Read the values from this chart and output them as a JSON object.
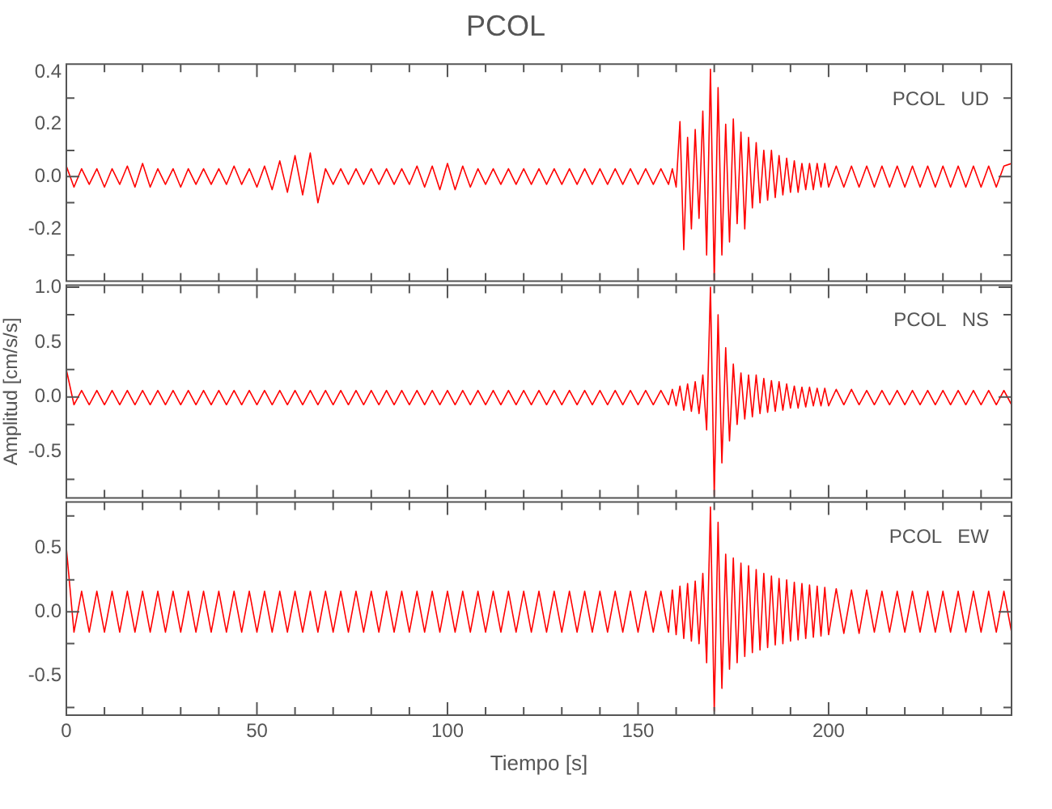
{
  "chart_data": [
    {
      "type": "line",
      "title": "PCOL",
      "annotations": [
        "PCOL   UD"
      ],
      "legend": false,
      "grid": false,
      "tick_labels": "y",
      "xlim": [
        0,
        248
      ],
      "ylim": [
        -0.4,
        0.43
      ],
      "xticks": [
        0,
        {
          "value": 10,
          "label": null
        },
        {
          "value": 20,
          "label": null
        },
        {
          "value": 30,
          "label": null
        },
        {
          "value": 40,
          "label": null
        },
        50,
        {
          "value": 60,
          "label": null
        },
        {
          "value": 70,
          "label": null
        },
        {
          "value": 80,
          "label": null
        },
        {
          "value": 90,
          "label": null
        },
        100,
        {
          "value": 110,
          "label": null
        },
        {
          "value": 120,
          "label": null
        },
        {
          "value": 130,
          "label": null
        },
        {
          "value": 140,
          "label": null
        },
        150,
        {
          "value": 160,
          "label": null
        },
        {
          "value": 170,
          "label": null
        },
        {
          "value": 180,
          "label": null
        },
        {
          "value": 190,
          "label": null
        },
        200,
        {
          "value": 210,
          "label": null
        },
        {
          "value": 220,
          "label": null
        },
        {
          "value": 230,
          "label": null
        },
        {
          "value": 240,
          "label": null
        }
      ],
      "yticks": [
        {
          "value": -0.3,
          "label": null
        },
        -0.2,
        {
          "value": -0.1,
          "label": null
        },
        {
          "value": 0,
          "label": "0.0"
        },
        {
          "value": 0.1,
          "label": null
        },
        0.2,
        {
          "value": 0.3,
          "label": null
        },
        0.4
      ],
      "x": [
        0,
        2,
        4,
        6,
        8,
        10,
        12,
        14,
        16,
        18,
        20,
        22,
        24,
        26,
        28,
        30,
        32,
        34,
        36,
        38,
        40,
        42,
        44,
        46,
        48,
        50,
        52,
        54,
        56,
        58,
        60,
        62,
        64,
        66,
        68,
        70,
        72,
        74,
        76,
        78,
        80,
        82,
        84,
        86,
        88,
        90,
        92,
        94,
        96,
        98,
        100,
        102,
        104,
        106,
        108,
        110,
        112,
        114,
        116,
        118,
        120,
        122,
        124,
        126,
        128,
        130,
        132,
        134,
        136,
        138,
        140,
        142,
        144,
        146,
        148,
        150,
        152,
        154,
        156,
        158,
        159,
        160,
        161,
        162,
        163,
        164,
        165,
        166,
        167,
        168,
        169,
        170,
        171,
        172,
        173,
        174,
        175,
        176,
        177,
        178,
        179,
        180,
        181,
        182,
        183,
        184,
        185,
        186,
        187,
        188,
        189,
        190,
        191,
        192,
        193,
        194,
        195,
        196,
        197,
        198,
        199,
        200,
        202,
        204,
        206,
        208,
        210,
        212,
        214,
        216,
        218,
        220,
        222,
        224,
        226,
        228,
        230,
        232,
        234,
        236,
        238,
        240,
        242,
        244,
        246,
        248
      ],
      "series": [
        {
          "color": "#ff0000",
          "values": [
            0.04,
            -0.04,
            0.03,
            -0.03,
            0.03,
            -0.04,
            0.03,
            -0.03,
            0.04,
            -0.04,
            0.05,
            -0.04,
            0.03,
            -0.03,
            0.03,
            -0.04,
            0.03,
            -0.03,
            0.03,
            -0.03,
            0.03,
            -0.03,
            0.04,
            -0.03,
            0.03,
            -0.04,
            0.04,
            -0.05,
            0.06,
            -0.06,
            0.08,
            -0.07,
            0.09,
            -0.1,
            0.03,
            -0.03,
            0.03,
            -0.03,
            0.03,
            -0.03,
            0.03,
            -0.03,
            0.03,
            -0.03,
            0.03,
            -0.03,
            0.04,
            -0.04,
            0.04,
            -0.05,
            0.05,
            -0.05,
            0.04,
            -0.04,
            0.03,
            -0.03,
            0.03,
            -0.03,
            0.03,
            -0.03,
            0.03,
            -0.03,
            0.03,
            -0.03,
            0.03,
            -0.03,
            0.03,
            -0.03,
            0.03,
            -0.03,
            0.03,
            -0.03,
            0.03,
            -0.03,
            0.03,
            -0.03,
            0.03,
            -0.03,
            0.03,
            -0.03,
            0.03,
            -0.04,
            0.21,
            -0.28,
            0.15,
            -0.2,
            0.18,
            -0.16,
            0.25,
            -0.3,
            0.41,
            -0.4,
            0.34,
            -0.3,
            0.2,
            -0.25,
            0.22,
            -0.18,
            0.17,
            -0.2,
            0.15,
            -0.12,
            0.13,
            -0.1,
            0.1,
            -0.09,
            0.1,
            -0.08,
            0.08,
            -0.07,
            0.07,
            -0.06,
            0.06,
            -0.06,
            0.05,
            -0.05,
            0.05,
            -0.05,
            0.05,
            -0.04,
            0.05,
            -0.04,
            0.04,
            -0.04,
            0.04,
            -0.04,
            0.04,
            -0.04,
            0.04,
            -0.04,
            0.04,
            -0.04,
            0.04,
            -0.04,
            0.04,
            -0.04,
            0.04,
            -0.04,
            0.04,
            -0.04,
            0.04,
            -0.04,
            0.04,
            -0.04,
            0.04,
            0.05
          ]
        }
      ]
    },
    {
      "type": "line",
      "ylabel": "Amplitud [cm/s/s]",
      "annotations": [
        "PCOL   NS"
      ],
      "legend": false,
      "grid": false,
      "tick_labels": "y",
      "xlim": [
        0,
        248
      ],
      "ylim": [
        -0.92,
        1.02
      ],
      "xticks": [
        0,
        {
          "value": 10,
          "label": null
        },
        {
          "value": 20,
          "label": null
        },
        {
          "value": 30,
          "label": null
        },
        {
          "value": 40,
          "label": null
        },
        50,
        {
          "value": 60,
          "label": null
        },
        {
          "value": 70,
          "label": null
        },
        {
          "value": 80,
          "label": null
        },
        {
          "value": 90,
          "label": null
        },
        100,
        {
          "value": 110,
          "label": null
        },
        {
          "value": 120,
          "label": null
        },
        {
          "value": 130,
          "label": null
        },
        {
          "value": 140,
          "label": null
        },
        150,
        {
          "value": 160,
          "label": null
        },
        {
          "value": 170,
          "label": null
        },
        {
          "value": 180,
          "label": null
        },
        {
          "value": 190,
          "label": null
        },
        200,
        {
          "value": 210,
          "label": null
        },
        {
          "value": 220,
          "label": null
        },
        {
          "value": 230,
          "label": null
        },
        {
          "value": 240,
          "label": null
        }
      ],
      "yticks": [
        {
          "value": -0.75,
          "label": null
        },
        -0.5,
        {
          "value": -0.25,
          "label": null
        },
        {
          "value": 0,
          "label": "0.0"
        },
        {
          "value": 0.25,
          "label": null
        },
        0.5,
        {
          "value": 0.75,
          "label": null
        },
        {
          "value": 1,
          "label": "1.0"
        }
      ],
      "x": [
        0,
        2,
        4,
        6,
        8,
        10,
        12,
        14,
        16,
        18,
        20,
        22,
        24,
        26,
        28,
        30,
        32,
        34,
        36,
        38,
        40,
        42,
        44,
        46,
        48,
        50,
        52,
        54,
        56,
        58,
        60,
        62,
        64,
        66,
        68,
        70,
        72,
        74,
        76,
        78,
        80,
        82,
        84,
        86,
        88,
        90,
        92,
        94,
        96,
        98,
        100,
        102,
        104,
        106,
        108,
        110,
        112,
        114,
        116,
        118,
        120,
        122,
        124,
        126,
        128,
        130,
        132,
        134,
        136,
        138,
        140,
        142,
        144,
        146,
        148,
        150,
        152,
        154,
        156,
        158,
        159,
        160,
        161,
        162,
        163,
        164,
        165,
        166,
        167,
        168,
        169,
        170,
        171,
        172,
        173,
        174,
        175,
        176,
        177,
        178,
        179,
        180,
        181,
        182,
        183,
        184,
        185,
        186,
        187,
        188,
        189,
        190,
        191,
        192,
        193,
        194,
        195,
        196,
        197,
        198,
        199,
        200,
        202,
        204,
        206,
        208,
        210,
        212,
        214,
        216,
        218,
        220,
        222,
        224,
        226,
        228,
        230,
        232,
        234,
        236,
        238,
        240,
        242,
        244,
        246,
        248
      ],
      "series": [
        {
          "color": "#ff0000",
          "values": [
            0.25,
            -0.07,
            0.06,
            -0.07,
            0.06,
            -0.07,
            0.06,
            -0.07,
            0.06,
            -0.07,
            0.06,
            -0.07,
            0.06,
            -0.07,
            0.06,
            -0.07,
            0.06,
            -0.07,
            0.06,
            -0.07,
            0.06,
            -0.07,
            0.06,
            -0.07,
            0.06,
            -0.07,
            0.06,
            -0.07,
            0.06,
            -0.07,
            0.06,
            -0.07,
            0.06,
            -0.07,
            0.06,
            -0.07,
            0.06,
            -0.07,
            0.06,
            -0.07,
            0.06,
            -0.07,
            0.06,
            -0.07,
            0.06,
            -0.07,
            0.06,
            -0.07,
            0.06,
            -0.07,
            0.06,
            -0.07,
            0.06,
            -0.07,
            0.06,
            -0.07,
            0.06,
            -0.07,
            0.06,
            -0.07,
            0.06,
            -0.07,
            0.06,
            -0.07,
            0.06,
            -0.07,
            0.06,
            -0.07,
            0.06,
            -0.07,
            0.06,
            -0.07,
            0.06,
            -0.07,
            0.06,
            -0.07,
            0.06,
            -0.07,
            0.06,
            -0.07,
            0.07,
            -0.08,
            0.1,
            -0.12,
            0.12,
            -0.13,
            0.14,
            -0.15,
            0.2,
            -0.3,
            1.0,
            -0.9,
            0.75,
            -0.6,
            0.45,
            -0.4,
            0.3,
            -0.25,
            0.22,
            -0.2,
            0.2,
            -0.18,
            0.2,
            -0.15,
            0.17,
            -0.14,
            0.15,
            -0.13,
            0.14,
            -0.12,
            0.12,
            -0.1,
            0.1,
            -0.1,
            0.09,
            -0.09,
            0.09,
            -0.08,
            0.08,
            -0.08,
            0.08,
            -0.08,
            0.07,
            -0.07,
            0.07,
            -0.07,
            0.06,
            -0.07,
            0.06,
            -0.07,
            0.06,
            -0.07,
            0.06,
            -0.07,
            0.06,
            -0.07,
            0.06,
            -0.07,
            0.06,
            -0.07,
            0.06,
            -0.07,
            0.06,
            -0.07,
            0.06,
            -0.07
          ]
        }
      ]
    },
    {
      "type": "line",
      "xlabel": "Tiempo [s]",
      "annotations": [
        "PCOL   EW"
      ],
      "legend": false,
      "grid": false,
      "xlim": [
        0,
        248
      ],
      "ylim": [
        -0.81,
        0.86
      ],
      "xticks": [
        0,
        {
          "value": 10,
          "label": null
        },
        {
          "value": 20,
          "label": null
        },
        {
          "value": 30,
          "label": null
        },
        {
          "value": 40,
          "label": null
        },
        50,
        {
          "value": 60,
          "label": null
        },
        {
          "value": 70,
          "label": null
        },
        {
          "value": 80,
          "label": null
        },
        {
          "value": 90,
          "label": null
        },
        100,
        {
          "value": 110,
          "label": null
        },
        {
          "value": 120,
          "label": null
        },
        {
          "value": 130,
          "label": null
        },
        {
          "value": 140,
          "label": null
        },
        150,
        {
          "value": 160,
          "label": null
        },
        {
          "value": 170,
          "label": null
        },
        {
          "value": 180,
          "label": null
        },
        {
          "value": 190,
          "label": null
        },
        200,
        {
          "value": 210,
          "label": null
        },
        {
          "value": 220,
          "label": null
        },
        {
          "value": 230,
          "label": null
        },
        {
          "value": 240,
          "label": null
        }
      ],
      "yticks": [
        {
          "value": -0.75,
          "label": null
        },
        -0.5,
        {
          "value": -0.25,
          "label": null
        },
        {
          "value": 0,
          "label": "0.0"
        },
        {
          "value": 0.25,
          "label": null
        },
        0.5,
        {
          "value": 0.75,
          "label": null
        }
      ],
      "x": [
        0,
        2,
        4,
        6,
        8,
        10,
        12,
        14,
        16,
        18,
        20,
        22,
        24,
        26,
        28,
        30,
        32,
        34,
        36,
        38,
        40,
        42,
        44,
        46,
        48,
        50,
        52,
        54,
        56,
        58,
        60,
        62,
        64,
        66,
        68,
        70,
        72,
        74,
        76,
        78,
        80,
        82,
        84,
        86,
        88,
        90,
        92,
        94,
        96,
        98,
        100,
        102,
        104,
        106,
        108,
        110,
        112,
        114,
        116,
        118,
        120,
        122,
        124,
        126,
        128,
        130,
        132,
        134,
        136,
        138,
        140,
        142,
        144,
        146,
        148,
        150,
        152,
        154,
        156,
        158,
        159,
        160,
        161,
        162,
        163,
        164,
        165,
        166,
        167,
        168,
        169,
        170,
        171,
        172,
        173,
        174,
        175,
        176,
        177,
        178,
        179,
        180,
        181,
        182,
        183,
        184,
        185,
        186,
        187,
        188,
        189,
        190,
        191,
        192,
        193,
        194,
        195,
        196,
        197,
        198,
        199,
        200,
        202,
        204,
        206,
        208,
        210,
        212,
        214,
        216,
        218,
        220,
        222,
        224,
        226,
        228,
        230,
        232,
        234,
        236,
        238,
        240,
        242,
        244,
        246,
        248
      ],
      "series": [
        {
          "color": "#ff0000",
          "values": [
            0.5,
            -0.16,
            0.16,
            -0.16,
            0.16,
            -0.16,
            0.16,
            -0.16,
            0.16,
            -0.16,
            0.16,
            -0.16,
            0.16,
            -0.16,
            0.16,
            -0.16,
            0.16,
            -0.16,
            0.16,
            -0.16,
            0.16,
            -0.16,
            0.16,
            -0.16,
            0.16,
            -0.16,
            0.16,
            -0.16,
            0.16,
            -0.16,
            0.16,
            -0.16,
            0.16,
            -0.16,
            0.16,
            -0.16,
            0.16,
            -0.16,
            0.16,
            -0.16,
            0.16,
            -0.16,
            0.16,
            -0.16,
            0.16,
            -0.16,
            0.16,
            -0.16,
            0.16,
            -0.16,
            0.16,
            -0.16,
            0.16,
            -0.16,
            0.16,
            -0.16,
            0.16,
            -0.16,
            0.16,
            -0.16,
            0.16,
            -0.16,
            0.16,
            -0.16,
            0.16,
            -0.16,
            0.16,
            -0.16,
            0.16,
            -0.16,
            0.16,
            -0.16,
            0.16,
            -0.16,
            0.16,
            -0.16,
            0.16,
            -0.16,
            0.16,
            -0.16,
            0.17,
            -0.18,
            0.2,
            -0.21,
            0.22,
            -0.23,
            0.24,
            -0.25,
            0.3,
            -0.4,
            0.82,
            -0.78,
            0.7,
            -0.6,
            0.45,
            -0.45,
            0.42,
            -0.4,
            0.38,
            -0.35,
            0.36,
            -0.32,
            0.33,
            -0.3,
            0.3,
            -0.28,
            0.28,
            -0.26,
            0.26,
            -0.25,
            0.25,
            -0.23,
            0.23,
            -0.22,
            0.22,
            -0.21,
            0.21,
            -0.2,
            0.2,
            -0.19,
            0.19,
            -0.18,
            0.18,
            -0.17,
            0.17,
            -0.17,
            0.17,
            -0.16,
            0.16,
            -0.16,
            0.16,
            -0.16,
            0.16,
            -0.16,
            0.16,
            -0.16,
            0.16,
            -0.16,
            0.16,
            -0.16,
            0.16,
            -0.16,
            0.16,
            -0.16,
            0.16,
            -0.16
          ]
        }
      ]
    }
  ]
}
